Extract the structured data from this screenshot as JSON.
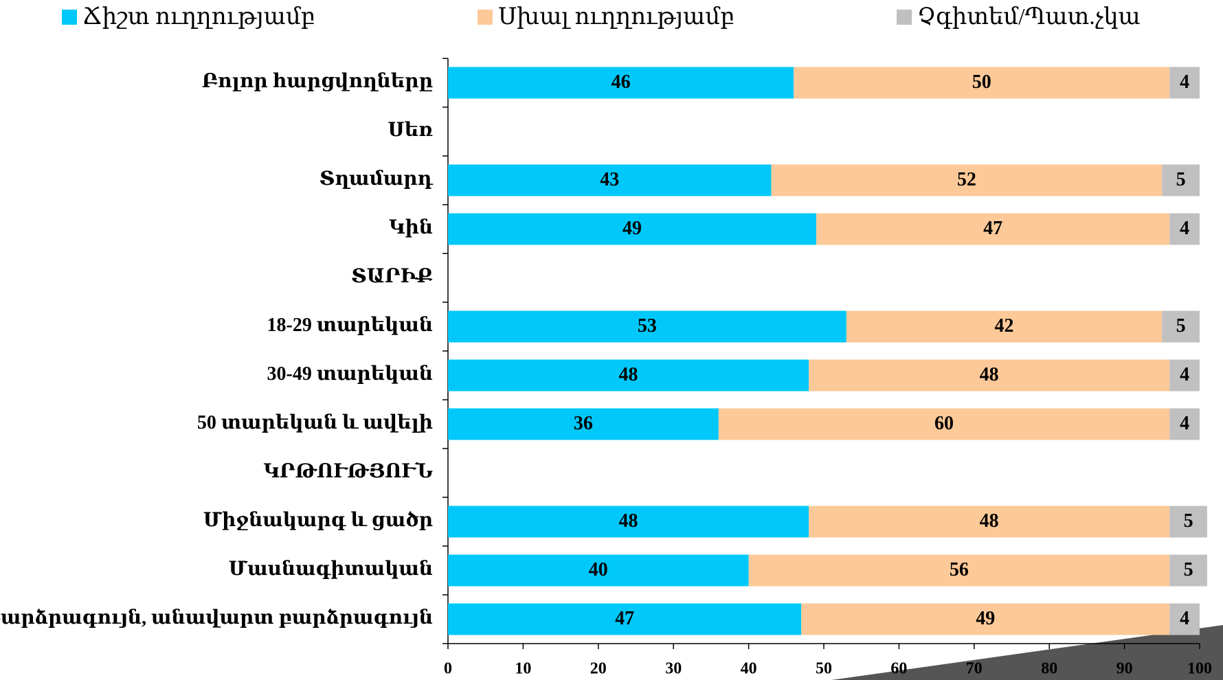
{
  "chart_data": {
    "type": "stacked-barh",
    "categories": [
      "Բոլոր հարցվողները",
      "Սեռ",
      "Տղամարդ",
      "Կին",
      "ՏԱՐԻՔ",
      "18-29 տարեկան",
      "30-49 տարեկան",
      "50 տարեկան և ավելի",
      "ԿՐԹՈՒԹՅՈՒՆ",
      "Միջնակարգ և ցածր",
      "Մասնագիտական",
      "Բարձրագույն, անավարտ բարձրագույն"
    ],
    "series": [
      {
        "name": "Ճիշտ ուղղությամբ",
        "color": "#00c8fa",
        "values": [
          46,
          null,
          43,
          49,
          null,
          53,
          48,
          36,
          null,
          48,
          40,
          47
        ]
      },
      {
        "name": "Սխալ ուղղությամբ",
        "color": "#fdc998",
        "values": [
          50,
          null,
          52,
          47,
          null,
          42,
          48,
          60,
          null,
          48,
          56,
          49
        ]
      },
      {
        "name": "Չգիտեմ/Պատ.չկա",
        "color": "#c0c0c0",
        "values": [
          4,
          null,
          5,
          4,
          null,
          5,
          4,
          4,
          null,
          5,
          5,
          4
        ]
      }
    ],
    "xlim": [
      0,
      100
    ],
    "xticks": [
      0,
      10,
      20,
      30,
      40,
      50,
      60,
      70,
      80,
      90,
      100
    ],
    "legend": "top"
  }
}
